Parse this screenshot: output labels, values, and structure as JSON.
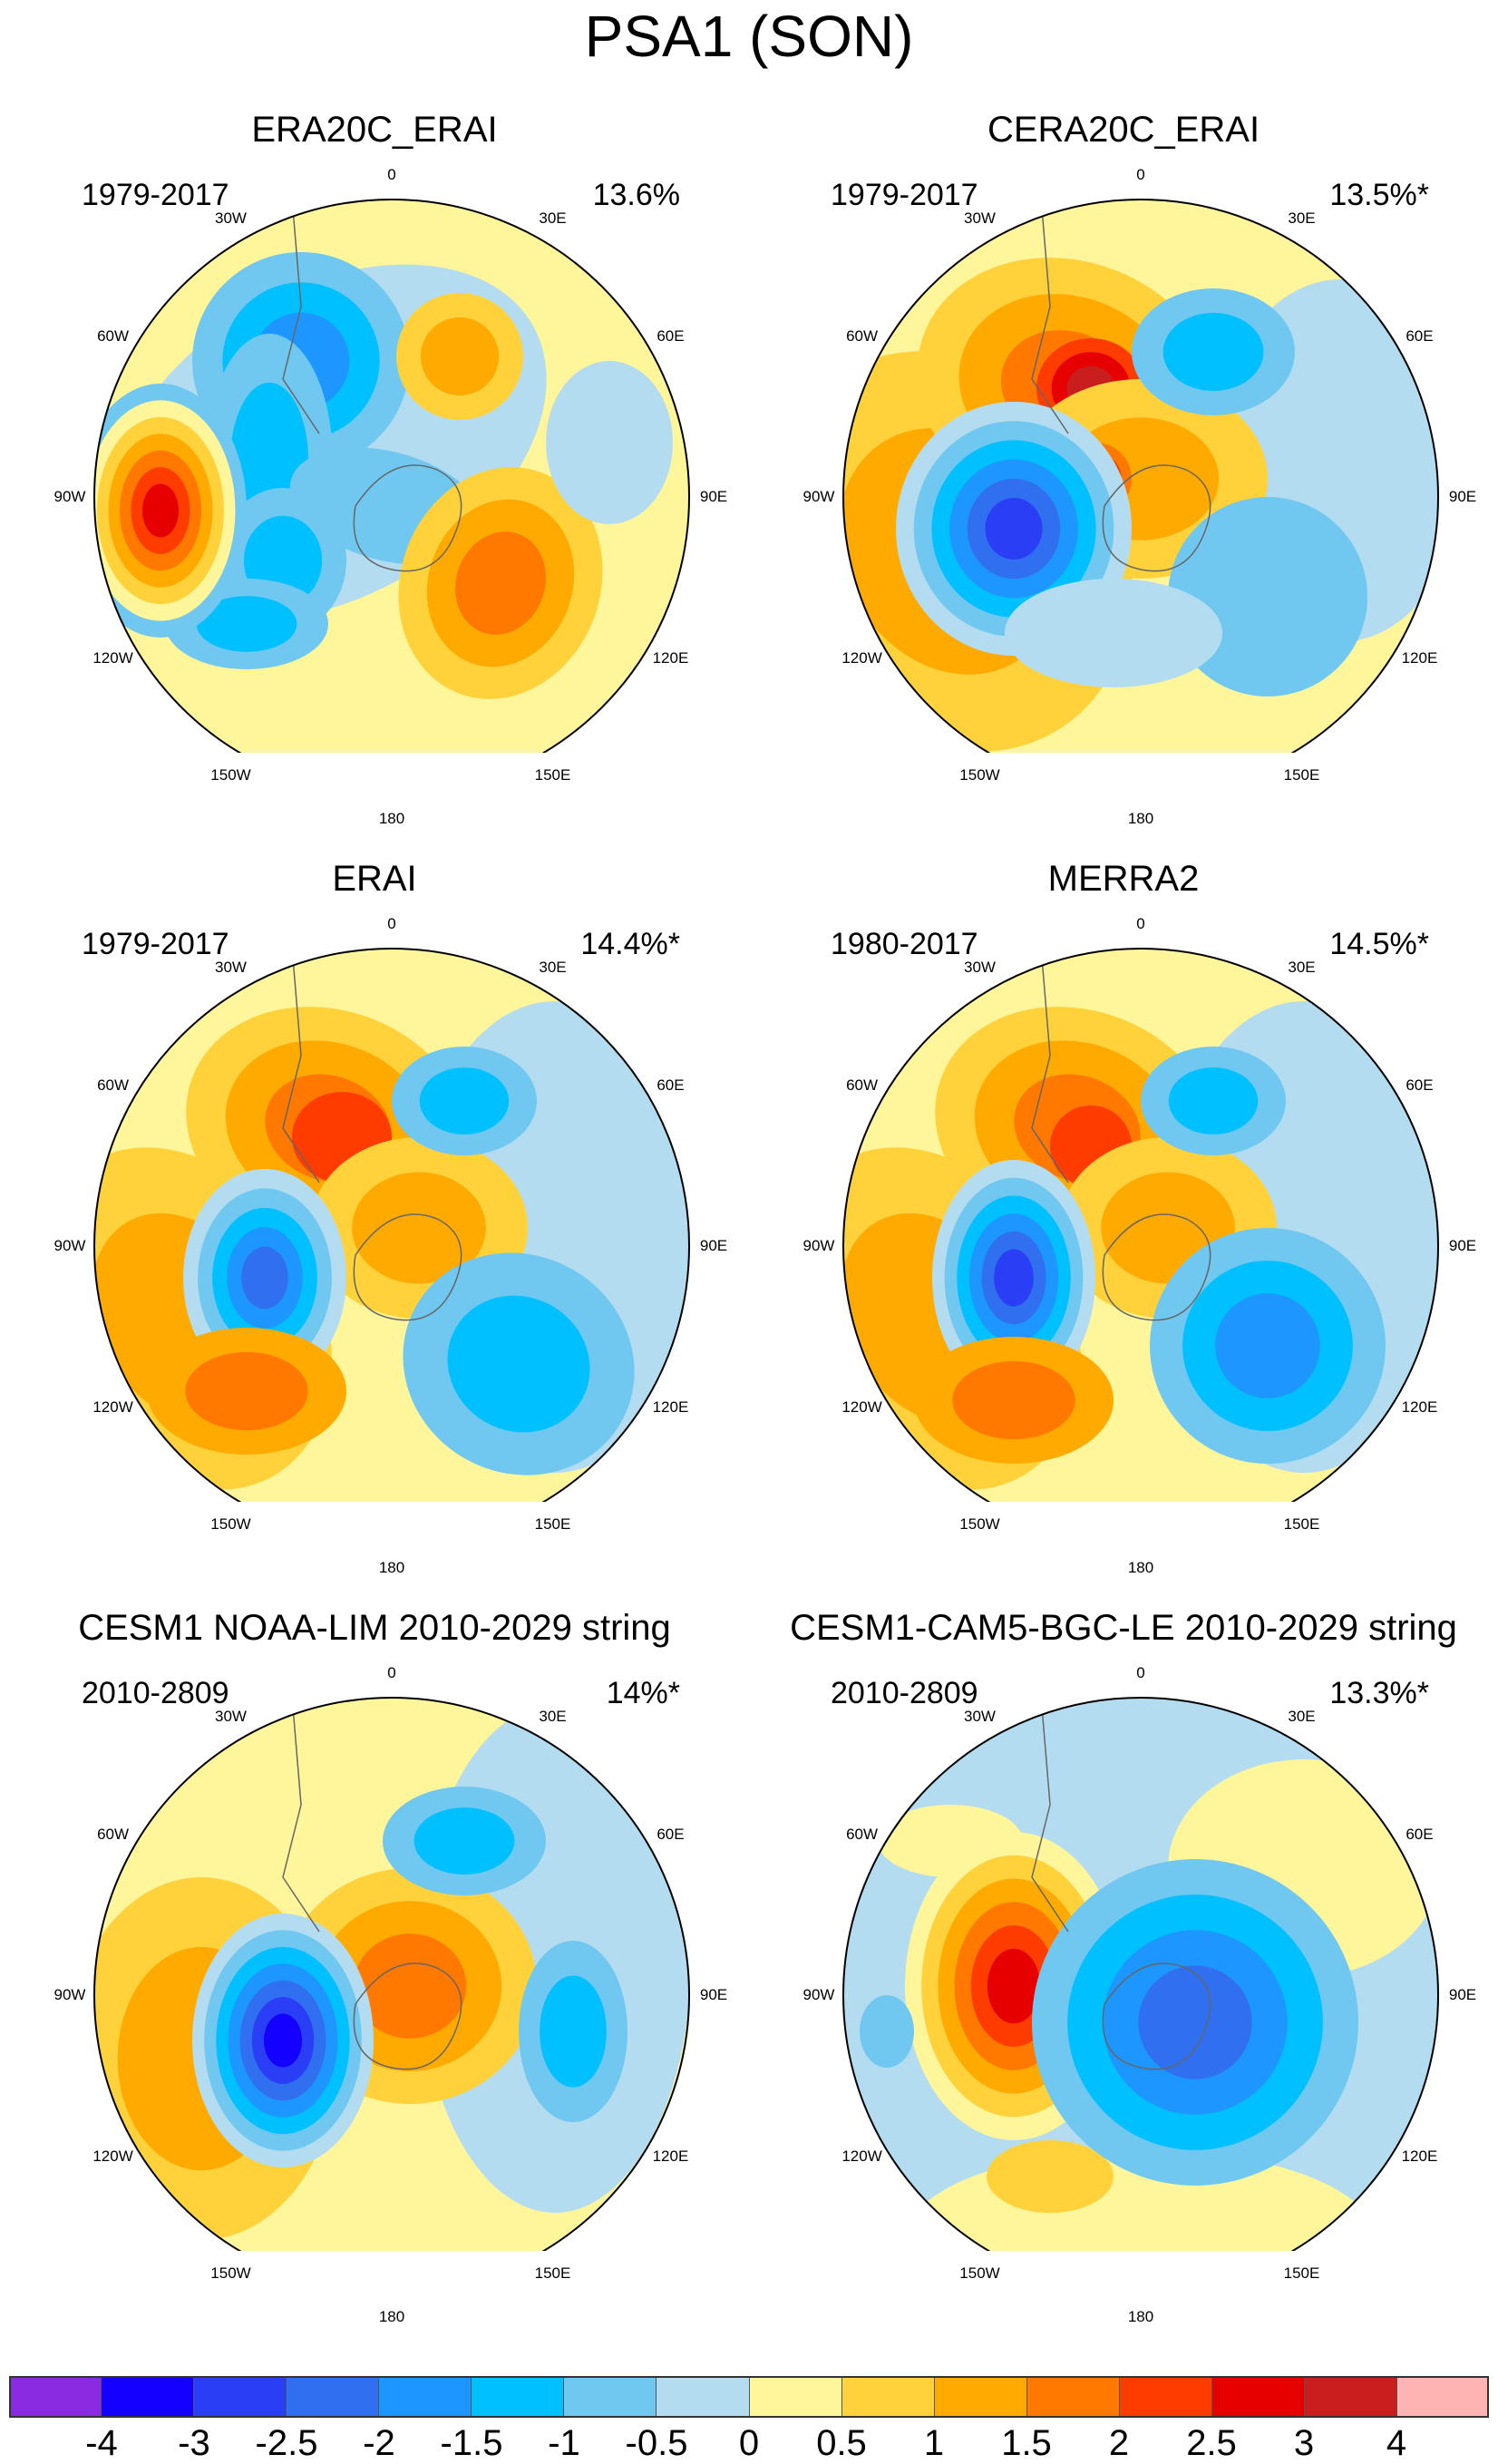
{
  "title": "PSA1 (SON)",
  "panels": [
    {
      "title": "ERA20C_ERAI",
      "years": "1979-2017",
      "percent": "13.6%"
    },
    {
      "title": "CERA20C_ERAI",
      "years": "1979-2017",
      "percent": "13.5%*"
    },
    {
      "title": "ERAI",
      "years": "1979-2017",
      "percent": "14.4%*"
    },
    {
      "title": "MERRA2",
      "years": "1980-2017",
      "percent": "14.5%*"
    },
    {
      "title": "CESM1 NOAA-LIM 2010-2029 string",
      "years": "2010-2809",
      "percent": "14%*"
    },
    {
      "title": "CESM1-CAM5-BGC-LE 2010-2029 string",
      "years": "2010-2809",
      "percent": "13.3%*"
    }
  ],
  "longitude_labels": [
    "0",
    "30E",
    "60E",
    "90E",
    "120E",
    "150E",
    "180",
    "150W",
    "120W",
    "90W",
    "60W",
    "30W"
  ],
  "colorbar": {
    "colors": [
      "#8a2be2",
      "#1400ff",
      "#2a3ef5",
      "#2f6ff0",
      "#1e96ff",
      "#00c0ff",
      "#70c8f0",
      "#b4dcf0",
      "#fff59a",
      "#ffd23c",
      "#ffaa00",
      "#ff7800",
      "#ff3c00",
      "#e60000",
      "#c81e1e",
      "#ffb4b4"
    ],
    "ticks": [
      "-4",
      "-3",
      "-2.5",
      "-2",
      "-1.5",
      "-1",
      "-0.5",
      "0",
      "0.5",
      "1",
      "1.5",
      "2",
      "2.5",
      "3",
      "4"
    ]
  }
}
